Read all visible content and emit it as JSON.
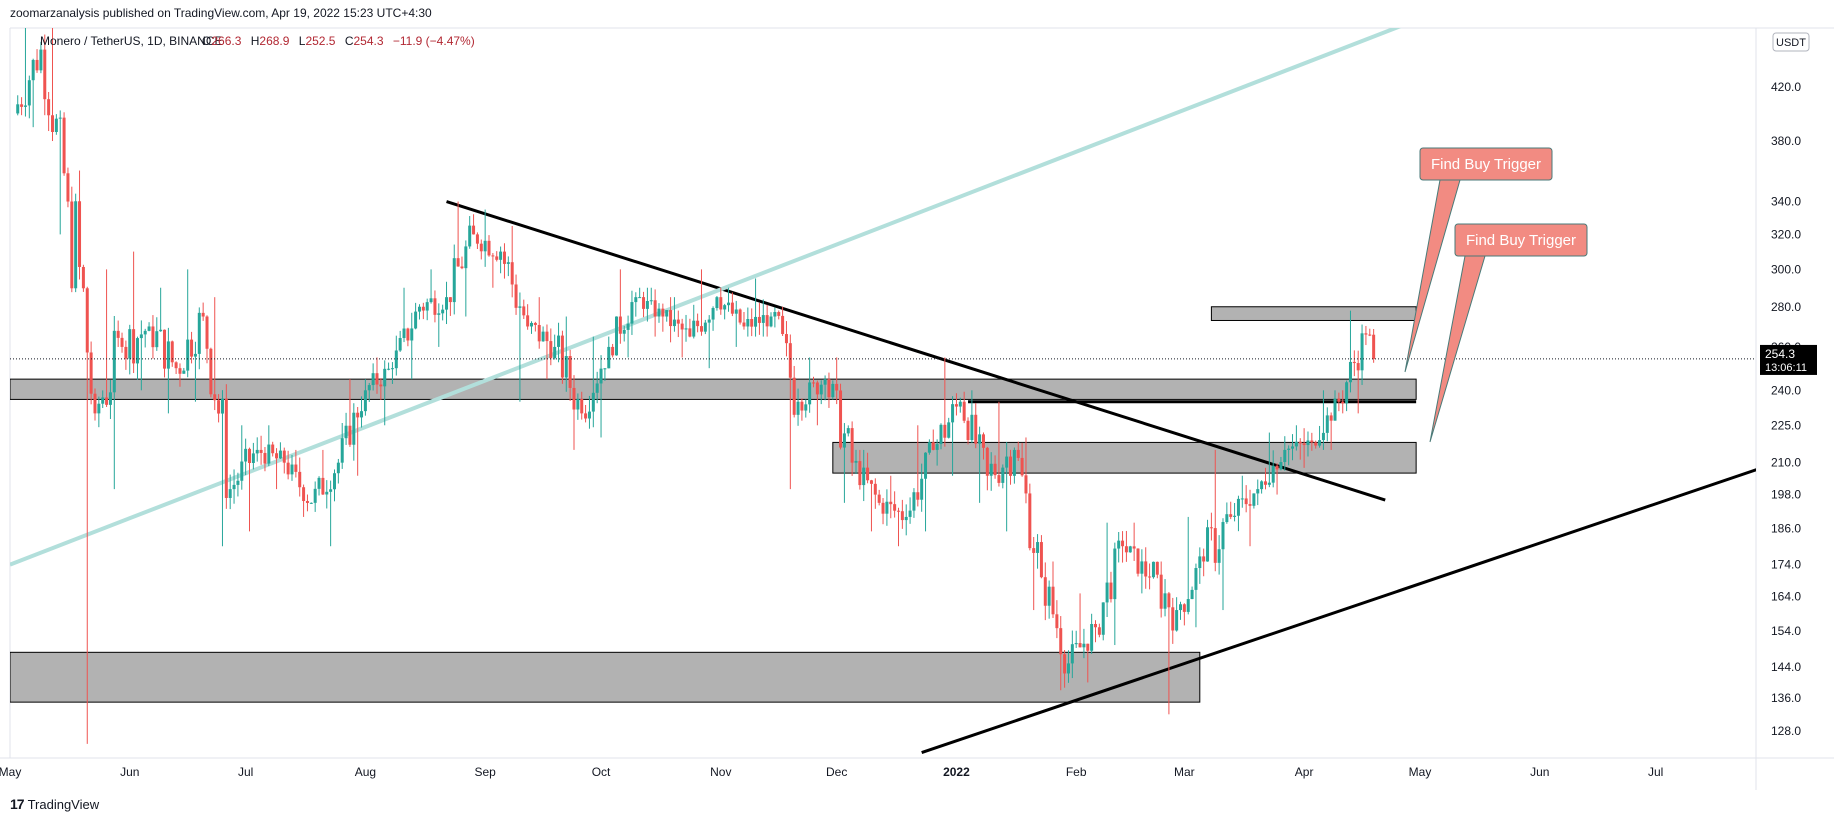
{
  "header": {
    "publisher_line": "zoomarzanalysis published on TradingView.com, Apr 19, 2022 15:23 UTC+4:30"
  },
  "legend": {
    "symbol": "Monero / TetherUS, 1D, BINANCE",
    "open_label": "O",
    "open": "266.3",
    "high_label": "H",
    "high": "268.9",
    "low_label": "L",
    "low": "252.5",
    "close_label": "C",
    "close": "254.3",
    "change": "−11.9 (−4.47%)"
  },
  "price_scale": {
    "currency": "USDT",
    "current_price": "254.3",
    "countdown": "13:06:11"
  },
  "annotations": [
    {
      "text": "Find Buy Trigger"
    },
    {
      "text": "Find Buy Trigger"
    }
  ],
  "footer": {
    "brand": "TradingView",
    "logo": "tradingview-logo-icon"
  },
  "colors": {
    "bullish": "#26a69a",
    "bearish": "#ef5350",
    "callout": "#f28b82",
    "zone_fill": "#b2b2b2",
    "channel_line": "#b2dfdb",
    "legend_change": "#b22833",
    "price_tag": "#000000"
  },
  "chart_data": {
    "type": "candlestick",
    "symbol": "XMR/USDT",
    "timeframe": "1D",
    "scale": "log",
    "y_ticks": [
      128.0,
      136.0,
      144.0,
      154.0,
      164.0,
      174.0,
      186.0,
      198.0,
      210.0,
      225.0,
      240.0,
      260.0,
      280.0,
      300.0,
      320.0,
      340.0,
      380.0,
      420.0
    ],
    "x_ticks": [
      "May",
      "Jun",
      "Jul",
      "Aug",
      "Sep",
      "Oct",
      "Nov",
      "Dec",
      "2022",
      "Feb",
      "Mar",
      "Apr",
      "May",
      "Jun",
      "Jul"
    ],
    "x_tick_bold": [
      false,
      false,
      false,
      false,
      false,
      false,
      false,
      false,
      true,
      false,
      false,
      false,
      false,
      false,
      false
    ],
    "zones": [
      {
        "from": "2021-05-01",
        "to": "2022-04-30",
        "low": 236,
        "high": 245
      },
      {
        "from": "2021-11-30",
        "to": "2022-04-30",
        "low": 206,
        "high": 218
      },
      {
        "from": "2021-05-01",
        "to": "2022-03-05",
        "low": 135,
        "high": 148
      },
      {
        "from": "2022-03-08",
        "to": "2022-04-30",
        "low": 273,
        "high": 280
      }
    ],
    "trendlines": [
      {
        "from": [
          "2021-08-22",
          340
        ],
        "to": [
          "2022-04-22",
          196
        ],
        "color": "#000000"
      },
      {
        "from": [
          "2021-12-23",
          123
        ],
        "to": [
          "2022-08-15",
          217
        ],
        "color": "#000000"
      },
      {
        "from": [
          "2021-05-01",
          174
        ],
        "to": [
          "2022-06-20",
          547
        ],
        "color": "#b2dfdb"
      },
      {
        "from": [
          "2022-01-04",
          235
        ],
        "to": [
          "2022-04-30",
          235
        ],
        "color": "#000000"
      }
    ],
    "candles_ohlc_weekly_approx": [
      {
        "week": "2021-05-03",
        "o": 400,
        "h": 495,
        "l": 390,
        "c": 450
      },
      {
        "week": "2021-05-10",
        "o": 450,
        "h": 470,
        "l": 320,
        "c": 340
      },
      {
        "week": "2021-05-17",
        "o": 340,
        "h": 360,
        "l": 125,
        "c": 230
      },
      {
        "week": "2021-05-24",
        "o": 230,
        "h": 300,
        "l": 200,
        "c": 260
      },
      {
        "week": "2021-05-31",
        "o": 260,
        "h": 310,
        "l": 240,
        "c": 270
      },
      {
        "week": "2021-06-07",
        "o": 270,
        "h": 290,
        "l": 230,
        "c": 250
      },
      {
        "week": "2021-06-14",
        "o": 250,
        "h": 300,
        "l": 235,
        "c": 275
      },
      {
        "week": "2021-06-21",
        "o": 275,
        "h": 285,
        "l": 180,
        "c": 200
      },
      {
        "week": "2021-06-28",
        "o": 200,
        "h": 225,
        "l": 185,
        "c": 215
      },
      {
        "week": "2021-07-05",
        "o": 215,
        "h": 225,
        "l": 200,
        "c": 210
      },
      {
        "week": "2021-07-12",
        "o": 210,
        "h": 215,
        "l": 190,
        "c": 195
      },
      {
        "week": "2021-07-19",
        "o": 195,
        "h": 215,
        "l": 180,
        "c": 210
      },
      {
        "week": "2021-07-26",
        "o": 210,
        "h": 245,
        "l": 205,
        "c": 240
      },
      {
        "week": "2021-08-02",
        "o": 240,
        "h": 255,
        "l": 225,
        "c": 250
      },
      {
        "week": "2021-08-09",
        "o": 250,
        "h": 290,
        "l": 245,
        "c": 280
      },
      {
        "week": "2021-08-16",
        "o": 280,
        "h": 300,
        "l": 260,
        "c": 285
      },
      {
        "week": "2021-08-23",
        "o": 285,
        "h": 340,
        "l": 275,
        "c": 320
      },
      {
        "week": "2021-08-30",
        "o": 320,
        "h": 335,
        "l": 290,
        "c": 310
      },
      {
        "week": "2021-09-06",
        "o": 310,
        "h": 325,
        "l": 235,
        "c": 270
      },
      {
        "week": "2021-09-13",
        "o": 270,
        "h": 285,
        "l": 245,
        "c": 260
      },
      {
        "week": "2021-09-20",
        "o": 260,
        "h": 275,
        "l": 215,
        "c": 230
      },
      {
        "week": "2021-09-27",
        "o": 230,
        "h": 265,
        "l": 220,
        "c": 260
      },
      {
        "week": "2021-10-04",
        "o": 260,
        "h": 300,
        "l": 255,
        "c": 285
      },
      {
        "week": "2021-10-11",
        "o": 285,
        "h": 290,
        "l": 265,
        "c": 275
      },
      {
        "week": "2021-10-18",
        "o": 275,
        "h": 285,
        "l": 255,
        "c": 265
      },
      {
        "week": "2021-10-25",
        "o": 265,
        "h": 300,
        "l": 250,
        "c": 285
      },
      {
        "week": "2021-11-01",
        "o": 285,
        "h": 290,
        "l": 260,
        "c": 270
      },
      {
        "week": "2021-11-08",
        "o": 270,
        "h": 295,
        "l": 265,
        "c": 275
      },
      {
        "week": "2021-11-15",
        "o": 275,
        "h": 280,
        "l": 200,
        "c": 235
      },
      {
        "week": "2021-11-22",
        "o": 235,
        "h": 255,
        "l": 225,
        "c": 245
      },
      {
        "week": "2021-11-29",
        "o": 245,
        "h": 255,
        "l": 195,
        "c": 210
      },
      {
        "week": "2021-12-06",
        "o": 210,
        "h": 215,
        "l": 185,
        "c": 195
      },
      {
        "week": "2021-12-13",
        "o": 195,
        "h": 205,
        "l": 180,
        "c": 190
      },
      {
        "week": "2021-12-20",
        "o": 190,
        "h": 225,
        "l": 185,
        "c": 215
      },
      {
        "week": "2021-12-27",
        "o": 215,
        "h": 255,
        "l": 205,
        "c": 235
      },
      {
        "week": "2022-01-03",
        "o": 235,
        "h": 240,
        "l": 195,
        "c": 205
      },
      {
        "week": "2022-01-10",
        "o": 205,
        "h": 235,
        "l": 185,
        "c": 215
      },
      {
        "week": "2022-01-17",
        "o": 215,
        "h": 220,
        "l": 160,
        "c": 170
      },
      {
        "week": "2022-01-24",
        "o": 170,
        "h": 175,
        "l": 138,
        "c": 145
      },
      {
        "week": "2022-01-31",
        "o": 145,
        "h": 165,
        "l": 140,
        "c": 155
      },
      {
        "week": "2022-02-07",
        "o": 155,
        "h": 188,
        "l": 150,
        "c": 180
      },
      {
        "week": "2022-02-14",
        "o": 180,
        "h": 188,
        "l": 165,
        "c": 170
      },
      {
        "week": "2022-02-21",
        "o": 170,
        "h": 175,
        "l": 132,
        "c": 160
      },
      {
        "week": "2022-02-28",
        "o": 160,
        "h": 190,
        "l": 155,
        "c": 175
      },
      {
        "week": "2022-03-07",
        "o": 175,
        "h": 215,
        "l": 160,
        "c": 190
      },
      {
        "week": "2022-03-14",
        "o": 190,
        "h": 205,
        "l": 180,
        "c": 200
      },
      {
        "week": "2022-03-21",
        "o": 200,
        "h": 222,
        "l": 198,
        "c": 215
      },
      {
        "week": "2022-03-28",
        "o": 215,
        "h": 225,
        "l": 208,
        "c": 218
      },
      {
        "week": "2022-04-04",
        "o": 218,
        "h": 240,
        "l": 215,
        "c": 235
      },
      {
        "week": "2022-04-11",
        "o": 235,
        "h": 278,
        "l": 230,
        "c": 266
      },
      {
        "week": "2022-04-18",
        "o": 266,
        "h": 268.9,
        "l": 252.5,
        "c": 254.3
      }
    ]
  }
}
